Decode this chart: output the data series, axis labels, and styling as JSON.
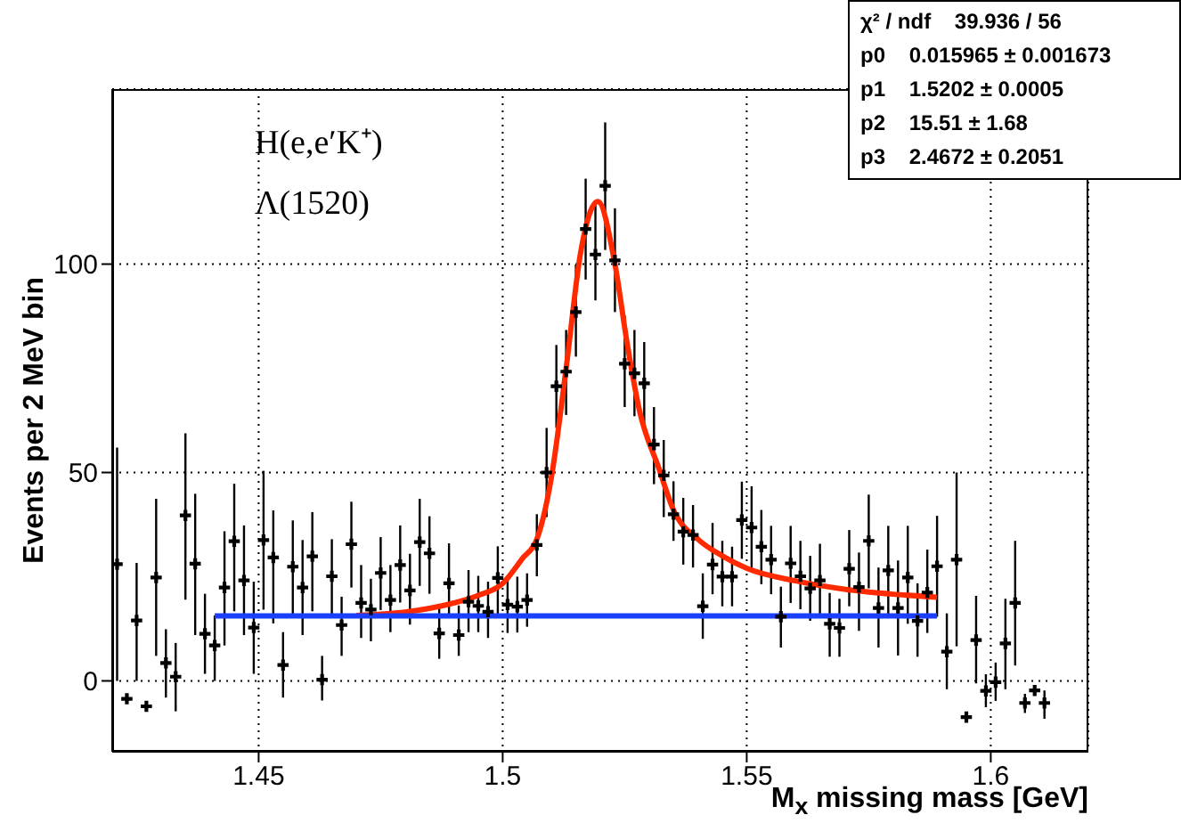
{
  "chart_data": {
    "type": "scatter",
    "xlabel": "M$_{x}$ missing mass [GeV]",
    "ylabel": "Events per 2 MeV bin",
    "annotations": [
      "H(e,e′K⁺)",
      "Λ(1520)",
      "χ² / ndf    39.936 / 56",
      "p0    0.015965 ± 0.001673",
      "p1    1.5202 ± 0.0005",
      "p2    15.51 ± 1.68",
      "p3    2.4672 ± 0.2051"
    ],
    "xlim": [
      1.42,
      1.62
    ],
    "xticks": [
      1.45,
      1.5,
      1.55,
      1.6
    ],
    "ylim": [
      -17,
      142
    ],
    "yticks": [
      0,
      50,
      100
    ],
    "grid": true,
    "series": [
      {
        "color": "#000000",
        "marker": "cross",
        "x": [
          1.421,
          1.423,
          1.425,
          1.427,
          1.429,
          1.431,
          1.433,
          1.435,
          1.437,
          1.439,
          1.441,
          1.443,
          1.445,
          1.447,
          1.449,
          1.451,
          1.453,
          1.455,
          1.457,
          1.459,
          1.461,
          1.463,
          1.465,
          1.467,
          1.469,
          1.471,
          1.473,
          1.475,
          1.477,
          1.479,
          1.481,
          1.483,
          1.485,
          1.487,
          1.489,
          1.491,
          1.493,
          1.495,
          1.497,
          1.499,
          1.501,
          1.503,
          1.505,
          1.507,
          1.509,
          1.511,
          1.513,
          1.515,
          1.517,
          1.519,
          1.521,
          1.523,
          1.525,
          1.527,
          1.529,
          1.531,
          1.533,
          1.535,
          1.537,
          1.539,
          1.541,
          1.543,
          1.545,
          1.547,
          1.549,
          1.551,
          1.553,
          1.555,
          1.557,
          1.559,
          1.561,
          1.563,
          1.565,
          1.567,
          1.569,
          1.571,
          1.573,
          1.575,
          1.577,
          1.579,
          1.581,
          1.583,
          1.585,
          1.587,
          1.589,
          1.591,
          1.593,
          1.595,
          1.597,
          1.599,
          1.601,
          1.603,
          1.605,
          1.607,
          1.609,
          1.611
        ],
        "values": [
          28,
          -4.3,
          14.5,
          -6.1,
          24.8,
          4.3,
          1,
          39.7,
          28.1,
          11.3,
          8.5,
          22.4,
          33.5,
          24.1,
          12.8,
          33.8,
          29.6,
          3.8,
          27.4,
          22.4,
          29.9,
          0.3,
          25.1,
          13.4,
          32.8,
          18.7,
          17.1,
          25.9,
          19.4,
          27.8,
          21.7,
          33.3,
          30.6,
          11.4,
          23.4,
          11,
          19,
          18,
          16.6,
          24.7,
          18.3,
          17.8,
          19.4,
          32.6,
          50,
          70.7,
          74.2,
          88.5,
          108.4,
          102.3,
          118.8,
          100.9,
          76.1,
          73.8,
          71.4,
          56.7,
          49.3,
          40,
          35.8,
          35,
          17.9,
          27.9,
          25,
          25,
          38.6,
          36.8,
          32.2,
          29.1,
          15.4,
          28.2,
          25.1,
          22.2,
          24.1,
          13.7,
          12.7,
          26.9,
          22.5,
          33.6,
          17.5,
          26.5,
          17.5,
          24.8,
          14.4,
          21.2,
          27.5,
          7,
          29.1,
          -8.7,
          9.8,
          -2.4,
          -0.3,
          9,
          18.7,
          -5.3,
          -2.3,
          -5.3
        ],
        "errors": [
          [
            0,
            56
          ],
          null,
          [
            0,
            28.3
          ],
          null,
          [
            6,
            43.7
          ],
          [
            -4,
            12.4
          ],
          [
            -7.3,
            9.1
          ],
          [
            19.5,
            59.4
          ],
          [
            11,
            44.9
          ],
          [
            1.7,
            20.9
          ],
          [
            0,
            15.7
          ],
          [
            8.5,
            35.9
          ],
          [
            16.7,
            47.3
          ],
          [
            11,
            37.3
          ],
          [
            1.7,
            23.8
          ],
          [
            17.1,
            50.4
          ],
          [
            13.8,
            40.9
          ],
          [
            -4,
            11.7
          ],
          [
            15.2,
            38.5
          ],
          [
            11,
            33.8
          ],
          [
            16.7,
            40.5
          ],
          [
            -4.7,
            6
          ],
          [
            16,
            34
          ],
          [
            6,
            20.2
          ],
          [
            22.4,
            43
          ],
          [
            10.3,
            27.8
          ],
          [
            9.5,
            24.5
          ],
          [
            17,
            34.5
          ],
          [
            11.7,
            27.8
          ],
          [
            18.8,
            37.3
          ],
          [
            13.5,
            30.5
          ],
          [
            22.8,
            43.7
          ],
          [
            20.9,
            39.5
          ],
          [
            5.3,
            17.7
          ],
          [
            16,
            33
          ],
          [
            6,
            18.1
          ],
          [
            11.7,
            26.6
          ],
          [
            11.7,
            25.2
          ],
          [
            10.3,
            23.8
          ],
          [
            16,
            32.3
          ],
          [
            11.5,
            25.2
          ],
          [
            11.6,
            25
          ],
          [
            13,
            25.8
          ],
          [
            25.1,
            40
          ],
          [
            39.3,
            60.7
          ],
          [
            60.7,
            80.6
          ],
          [
            63.8,
            84.2
          ],
          [
            77.8,
            99.9
          ],
          [
            96.3,
            120.5
          ],
          [
            91.3,
            114.8
          ],
          [
            103.4,
            134
          ],
          [
            88.5,
            113.4
          ],
          [
            65.7,
            87.7
          ],
          [
            63.5,
            84.2
          ],
          [
            59.3,
            81.3
          ],
          [
            47.2,
            65.7
          ],
          [
            39.3,
            57.8
          ],
          [
            33.6,
            47.9
          ],
          [
            27.9,
            43.9
          ],
          [
            27.2,
            42.2
          ],
          [
            10.1,
            25.8
          ],
          [
            20.8,
            37.9
          ],
          [
            17.9,
            33.6
          ],
          [
            17.9,
            32.2
          ],
          [
            29.3,
            47.8
          ],
          [
            27.2,
            46.7
          ],
          [
            23.2,
            41
          ],
          [
            20.8,
            37.2
          ],
          [
            8,
            22.6
          ],
          [
            18.7,
            37.2
          ],
          [
            17.2,
            33.6
          ],
          [
            14.4,
            30
          ],
          [
            15.8,
            32.9
          ],
          [
            5.8,
            21.1
          ],
          [
            5.8,
            19.7
          ],
          [
            17.9,
            36.2
          ],
          [
            12,
            30.8
          ],
          [
            22.2,
            44.7
          ],
          [
            8,
            27.2
          ],
          [
            15.8,
            37.2
          ],
          [
            6.1,
            28.9
          ],
          [
            13.7,
            37.2
          ],
          [
            5.8,
            23.4
          ],
          [
            11.5,
            31.5
          ],
          [
            15.4,
            39.6
          ],
          [
            -2,
            16.2
          ],
          [
            8.3,
            50
          ],
          null,
          [
            -0.6,
            20.4
          ],
          [
            -6.3,
            1.6
          ],
          [
            -4.8,
            4.4
          ],
          [
            -2,
            19.7
          ],
          [
            3.7,
            33.6
          ],
          [
            -7.7,
            -3.1
          ],
          [
            -3.4,
            -1.3
          ],
          [
            -9.1,
            -2.3
          ]
        ]
      },
      {
        "type": "line",
        "color": "#ff2a00",
        "x": [
          1.47,
          1.48,
          1.485,
          1.49,
          1.495,
          1.5,
          1.504,
          1.507,
          1.51,
          1.513,
          1.516,
          1.5195,
          1.523,
          1.5255,
          1.528,
          1.532,
          1.535,
          1.54,
          1.545,
          1.55,
          1.56,
          1.57,
          1.58,
          1.589
        ],
        "values": [
          15.7,
          16.5,
          17.4,
          18.7,
          20.5,
          23.4,
          29.3,
          34,
          49,
          75,
          103,
          115,
          100,
          81,
          65,
          51,
          41,
          34,
          30,
          27,
          24,
          22,
          20.8,
          20.1
        ]
      },
      {
        "type": "line",
        "color": "#1a3fff",
        "x": [
          1.441,
          1.589
        ],
        "values": [
          15.6,
          15.6
        ]
      }
    ]
  }
}
